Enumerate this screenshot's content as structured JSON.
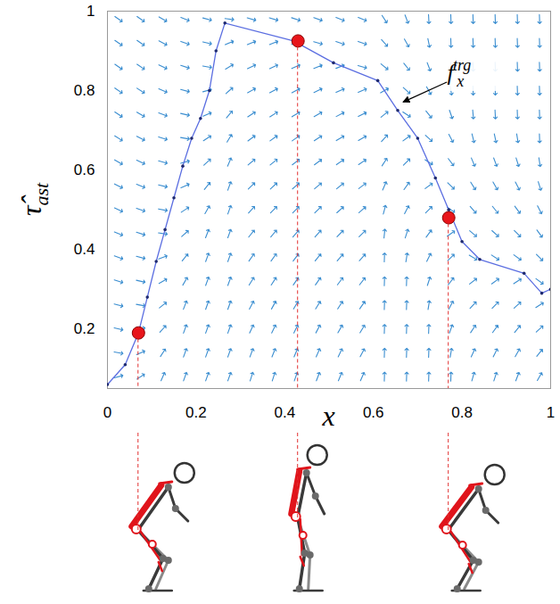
{
  "chart_data": {
    "type": "quiver",
    "xlabel": "x",
    "ylabel": {
      "text": "τ̂",
      "subscript": "ast"
    },
    "xlim": [
      0,
      1
    ],
    "ylim": [
      0.05,
      1
    ],
    "xticks": [
      0,
      0.2,
      0.4,
      0.6,
      0.8,
      1
    ],
    "yticks": [
      0.2,
      0.4,
      0.6,
      0.8,
      1
    ],
    "grid": false,
    "field": {
      "color": "#3b8ed0",
      "x": [
        0.025,
        0.075,
        0.125,
        0.175,
        0.225,
        0.275,
        0.325,
        0.375,
        0.425,
        0.475,
        0.525,
        0.575,
        0.625,
        0.675,
        0.725,
        0.775,
        0.825,
        0.875,
        0.925,
        0.975
      ],
      "y": [
        0.08,
        0.14,
        0.2,
        0.26,
        0.32,
        0.38,
        0.44,
        0.5,
        0.56,
        0.62,
        0.68,
        0.74,
        0.8,
        0.86,
        0.92,
        0.98
      ],
      "angle": [
        [
          15,
          33,
          66,
          70,
          70,
          70,
          72,
          72,
          71,
          69,
          67,
          66,
          88,
          88,
          88,
          88,
          74,
          72,
          69,
          60
        ],
        [
          -10,
          24,
          57,
          70,
          70,
          70,
          69,
          68,
          67,
          66,
          64,
          62,
          88,
          88,
          88,
          80,
          65,
          63,
          60,
          51
        ],
        [
          -13,
          15,
          48,
          70,
          70,
          70,
          65,
          64,
          64,
          62,
          60,
          59,
          88,
          88,
          88,
          70,
          56,
          54,
          51,
          42
        ],
        [
          -15,
          -10,
          39,
          69,
          70,
          70,
          62,
          61,
          60,
          58,
          57,
          55,
          88,
          88,
          81,
          62,
          47,
          45,
          42,
          33
        ],
        [
          -18,
          -13,
          30,
          60,
          70,
          70,
          58,
          57,
          56,
          55,
          53,
          52,
          88,
          88,
          72,
          52,
          38,
          36,
          33,
          -36
        ],
        [
          -20,
          -15,
          21,
          51,
          70,
          70,
          55,
          54,
          53,
          51,
          49,
          48,
          88,
          81,
          63,
          44,
          -31,
          -33,
          -36,
          -45
        ],
        [
          -22,
          -18,
          -9,
          42,
          69,
          70,
          51,
          50,
          49,
          48,
          46,
          44,
          84,
          72,
          54,
          35,
          -40,
          -42,
          -45,
          -54
        ],
        [
          -25,
          -20,
          -11,
          33,
          60,
          70,
          47,
          46,
          46,
          44,
          42,
          41,
          75,
          63,
          45,
          -35,
          -49,
          -51,
          -54,
          -63
        ],
        [
          -27,
          -22,
          -14,
          24,
          51,
          70,
          44,
          43,
          42,
          40,
          39,
          37,
          66,
          54,
          36,
          -44,
          -58,
          -60,
          -63,
          -72
        ],
        [
          -30,
          -25,
          -16,
          15,
          42,
          67,
          40,
          39,
          38,
          37,
          35,
          34,
          57,
          45,
          -33,
          -53,
          -67,
          -69,
          -72,
          -81
        ],
        [
          -32,
          -27,
          -18,
          -10,
          33,
          59,
          37,
          36,
          35,
          33,
          31,
          30,
          48,
          36,
          -42,
          -62,
          -76,
          -78,
          -81,
          -88
        ],
        [
          -34,
          -30,
          -21,
          -13,
          24,
          50,
          33,
          32,
          31,
          30,
          28,
          26,
          39,
          -33,
          -51,
          -71,
          -85,
          -87,
          -88,
          -88
        ],
        [
          -35,
          -32,
          -23,
          -15,
          15,
          41,
          29,
          28,
          28,
          26,
          24,
          23,
          30,
          -42,
          -60,
          -80,
          -88,
          -88,
          -88,
          -88
        ],
        [
          -35,
          -34,
          -26,
          -18,
          -10,
          32,
          26,
          25,
          24,
          22,
          21,
          -16,
          -39,
          -51,
          -69,
          -88,
          -88,
          -88,
          -88,
          -88
        ],
        [
          -35,
          -35,
          -28,
          -20,
          -13,
          23,
          22,
          21,
          20,
          -16,
          -18,
          -20,
          -48,
          -60,
          -78,
          -88,
          -88,
          -88,
          -88,
          -88
        ],
        [
          -35,
          -35,
          -30,
          -22,
          -15,
          -8,
          -17,
          -17,
          -18,
          -20,
          -22,
          -23,
          -57,
          -69,
          -87,
          -88,
          -88,
          -88,
          -88,
          -88
        ]
      ]
    },
    "series": [
      {
        "type": "line",
        "color": "#5b6ee1",
        "marker": "dot",
        "x": [
          0,
          0.04,
          0.07,
          0.09,
          0.11,
          0.13,
          0.15,
          0.17,
          0.19,
          0.21,
          0.23,
          0.245,
          0.265,
          0.42,
          0.51,
          0.61,
          0.655,
          0.7,
          0.74,
          0.77,
          0.8,
          0.84,
          0.94,
          0.98,
          1
        ],
        "values": [
          0.06,
          0.11,
          0.19,
          0.28,
          0.37,
          0.45,
          0.53,
          0.61,
          0.68,
          0.73,
          0.8,
          0.9,
          0.97,
          0.925,
          0.87,
          0.825,
          0.75,
          0.68,
          0.58,
          0.5,
          0.42,
          0.375,
          0.34,
          0.29,
          0.3
        ]
      }
    ],
    "points": {
      "type": "scatter",
      "color": "#e8151b",
      "x": [
        0.07,
        0.43,
        0.77
      ],
      "values": [
        0.19,
        0.925,
        0.48
      ]
    },
    "annotation": {
      "text": "f",
      "subscript": "x",
      "superscript": "trg",
      "x": 0.775,
      "y": 0.825,
      "target": [
        0.668,
        0.77
      ]
    }
  }
}
